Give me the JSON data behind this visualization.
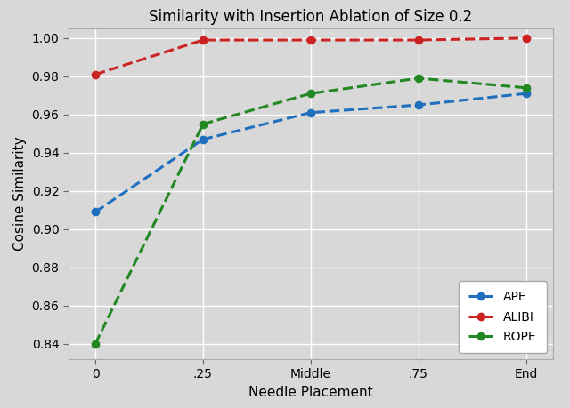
{
  "title": "Similarity with Insertion Ablation of Size 0.2",
  "xlabel": "Needle Placement",
  "ylabel": "Cosine Similarity",
  "background_color": "#d8d8d8",
  "plot_bg_color": "#d8d8d8",
  "x_positions": [
    0,
    1,
    2,
    3,
    4
  ],
  "x_labels": [
    "0",
    ".25",
    "Middle",
    ".75",
    "End"
  ],
  "series": [
    {
      "label": "APE",
      "color": "#1f6fbf",
      "y": [
        0.909,
        0.947,
        0.961,
        0.965,
        0.971
      ]
    },
    {
      "label": "ALIBI",
      "color": "#cc2222",
      "y": [
        0.981,
        0.999,
        0.999,
        0.999,
        1.0
      ]
    },
    {
      "label": "ROPE",
      "color": "#228822",
      "y": [
        0.84,
        0.955,
        0.971,
        0.979,
        0.974
      ]
    }
  ],
  "ylim": [
    0.832,
    1.005
  ],
  "yticks": [
    0.84,
    0.86,
    0.88,
    0.9,
    0.92,
    0.94,
    0.96,
    0.98,
    1.0
  ],
  "legend_loc": "lower right",
  "grid": true,
  "title_fontsize": 12,
  "label_fontsize": 11,
  "tick_fontsize": 10,
  "legend_fontsize": 10,
  "linewidth": 2.2,
  "markersize": 6
}
